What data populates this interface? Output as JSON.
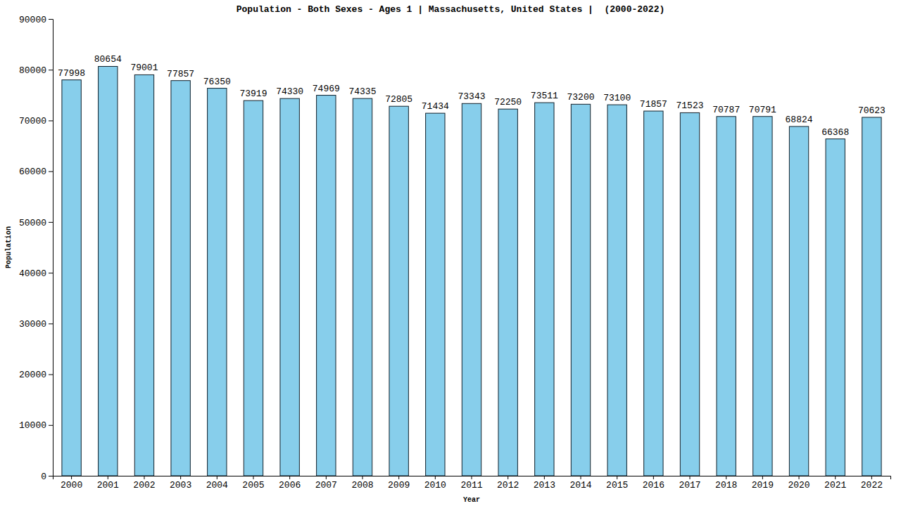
{
  "chart_data": {
    "type": "bar",
    "title": "Population - Both Sexes - Ages 1 | Massachusetts, United States |  (2000-2022)",
    "x_label": "Year",
    "y_label": "Population",
    "categories": [
      "2000",
      "2001",
      "2002",
      "2003",
      "2004",
      "2005",
      "2006",
      "2007",
      "2008",
      "2009",
      "2010",
      "2011",
      "2012",
      "2013",
      "2014",
      "2015",
      "2016",
      "2017",
      "2018",
      "2019",
      "2020",
      "2021",
      "2022"
    ],
    "values": [
      77998,
      80654,
      79001,
      77857,
      76350,
      73919,
      74330,
      74969,
      74335,
      72805,
      71434,
      73343,
      72250,
      73511,
      73200,
      73100,
      71857,
      71523,
      70787,
      70791,
      68824,
      66368,
      70623
    ],
    "color": "#87ceeb",
    "ylim": [
      0,
      90000
    ],
    "yticks": [
      0,
      10000,
      20000,
      30000,
      40000,
      50000,
      60000,
      70000,
      80000,
      90000
    ],
    "grid": false,
    "data_labels": true
  }
}
